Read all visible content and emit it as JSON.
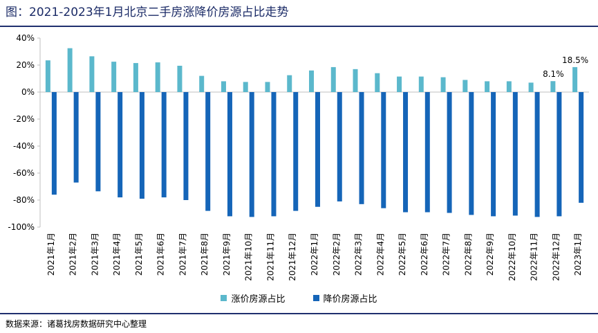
{
  "title": "图：2021-2023年1月北京二手房涨降价房源占比走势",
  "source": "数据来源：诸葛找房数据研究中心整理",
  "colors": {
    "up": "#5bb8cc",
    "down": "#1565b8",
    "axis": "#bfbfbf",
    "header_rule": "#1f2f6e",
    "title_text": "#1a2a66"
  },
  "chart_data": {
    "type": "bar",
    "categories": [
      "2021年1月",
      "2021年2月",
      "2021年3月",
      "2021年4月",
      "2021年5月",
      "2021年6月",
      "2021年7月",
      "2021年8月",
      "2021年9月",
      "2021年10月",
      "2021年11月",
      "2021年12月",
      "2022年1月",
      "2022年2月",
      "2022年3月",
      "2022年4月",
      "2022年5月",
      "2022年6月",
      "2022年7月",
      "2022年8月",
      "2022年9月",
      "2022年10月",
      "2022年11月",
      "2022年12月",
      "2023年1月"
    ],
    "series": [
      {
        "name": "涨价房源占比",
        "values": [
          23.5,
          32.5,
          26.5,
          22.5,
          21.5,
          22,
          19.5,
          12,
          8,
          7.5,
          7.5,
          12.5,
          16,
          18.5,
          17,
          14,
          11.5,
          11.5,
          11,
          9,
          8,
          8,
          7,
          8.1,
          18.5
        ]
      },
      {
        "name": "降价房源占比",
        "values": [
          -76,
          -67,
          -73.5,
          -78,
          -79,
          -78,
          -80,
          -88,
          -92,
          -92.5,
          -92,
          -88,
          -85,
          -81,
          -83,
          -86,
          -89,
          -89,
          -89.5,
          -91,
          -92,
          -91.5,
          -92.5,
          -92,
          -82
        ]
      }
    ],
    "data_labels": [
      {
        "series": 0,
        "index": 23,
        "text": "8.1%"
      },
      {
        "series": 0,
        "index": 24,
        "text": "18.5%"
      }
    ],
    "ylim": [
      -100,
      40
    ],
    "yticks": [
      "-100%",
      "-80%",
      "-60%",
      "-40%",
      "-20%",
      "0%",
      "20%",
      "40%"
    ],
    "ytick_values": [
      -100,
      -80,
      -60,
      -40,
      -20,
      0,
      20,
      40
    ],
    "grid": false,
    "legend_position": "bottom"
  }
}
